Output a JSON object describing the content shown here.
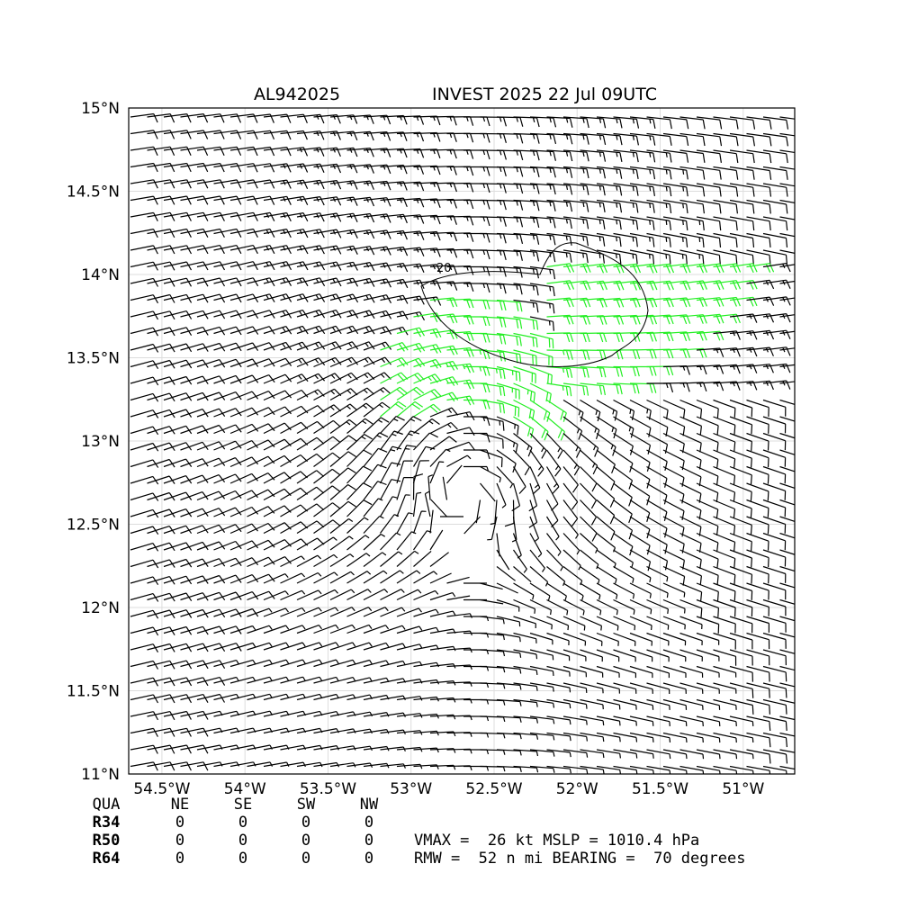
{
  "chart_data": {
    "type": "wind-barb-map",
    "title_left": "AL942025",
    "title_right": "INVEST 2025 22 Jul 09UTC",
    "xlim": [
      -54.7,
      -50.69
    ],
    "ylim": [
      11,
      15
    ],
    "xticks": [
      {
        "value": -54.5,
        "label": "54.5°W"
      },
      {
        "value": -54,
        "label": "54°W"
      },
      {
        "value": -53.5,
        "label": "53.5°W"
      },
      {
        "value": -53,
        "label": "53°W"
      },
      {
        "value": -52.5,
        "label": "52.5°W"
      },
      {
        "value": -52,
        "label": "52°W"
      },
      {
        "value": -51.5,
        "label": "51.5°W"
      },
      {
        "value": -51,
        "label": "51°W"
      }
    ],
    "yticks": [
      {
        "value": 11,
        "label": "11°N"
      },
      {
        "value": 11.5,
        "label": "11.5°N"
      },
      {
        "value": 12,
        "label": "12°N"
      },
      {
        "value": 12.5,
        "label": "12.5°N"
      },
      {
        "value": 13,
        "label": "13°N"
      },
      {
        "value": 13.5,
        "label": "13.5°N"
      },
      {
        "value": 14,
        "label": "14°N"
      },
      {
        "value": 14.5,
        "label": "14.5°N"
      },
      {
        "value": 15,
        "label": "15°N"
      }
    ],
    "grid": true,
    "contour_label": "20"
  },
  "table": {
    "header": [
      "QUA",
      "NE",
      "SE",
      "SW",
      "NW"
    ],
    "rows": [
      {
        "name": "R34",
        "values": [
          0,
          0,
          0,
          0
        ]
      },
      {
        "name": "R50",
        "values": [
          0,
          0,
          0,
          0
        ]
      },
      {
        "name": "R64",
        "values": [
          0,
          0,
          0,
          0
        ]
      }
    ]
  },
  "info": [
    "VMAX =  26 kt MSLP = 1010.4 hPa",
    "RMW =  52 n mi BEARING =  70 degrees"
  ]
}
